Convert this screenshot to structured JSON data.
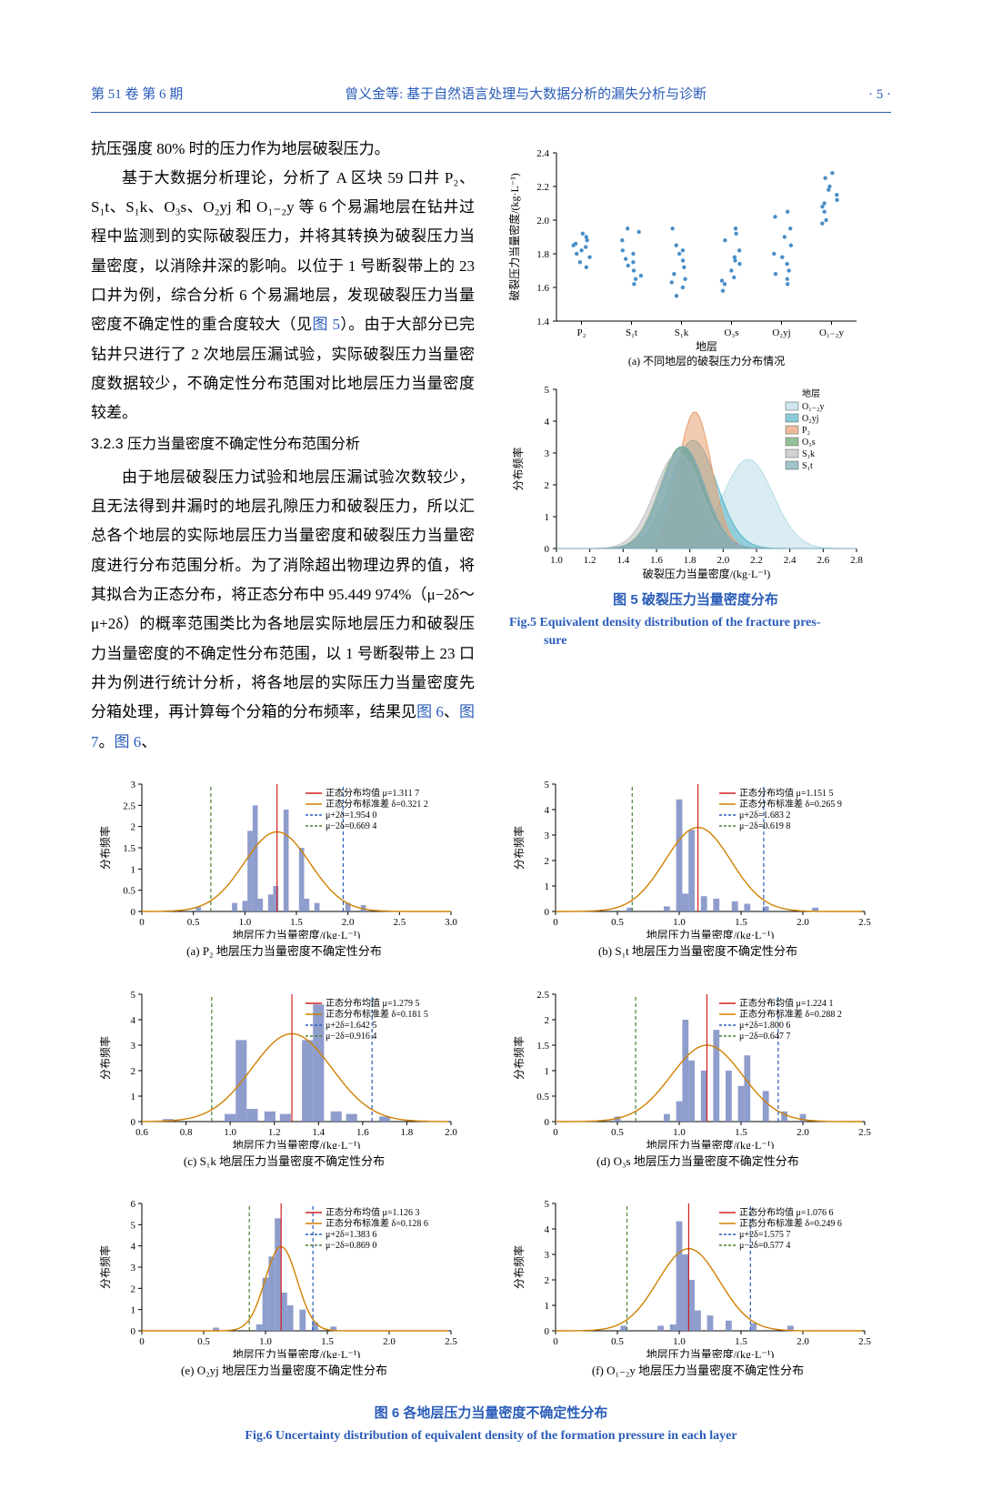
{
  "header": {
    "left": "第 51 卷 第 6 期",
    "center": "曾义金等: 基于自然语言处理与大数据分析的漏失分析与诊断",
    "right": "· 5 ·"
  },
  "body": {
    "p1": "抗压强度 80% 时的压力作为地层破裂压力。",
    "p2_a": "基于大数据分析理论，分析了 A 区块 59 口井 P₂、S₁t、S₁k、O₃s、O₂yj 和 O₁₋₂y 等 6 个易漏地层在钻井过程中监测到的实际破裂压力，并将其转换为破裂压力当量密度，以消除井深的影响。以位于 1 号断裂带上的 23 口井为例，综合分析 6 个易漏地层，发现破裂压力当量密度不确定性的重合度较大（见",
    "p2_link": "图 5",
    "p2_b": "）。由于大部分已完钻井只进行了 2 次地层压漏试验，实际破裂压力当量密度数据较少，不确定性分布范围对比地层压力当量密度较差。",
    "sec_heading": "3.2.3  压力当量密度不确定性分布范围分析",
    "p3_a": "由于地层破裂压力试验和地层压漏试验次数较少，且无法得到井漏时的地层孔隙压力和破裂压力，所以汇总各个地层的实际地层压力当量密度和破裂压力当量密度进行分布范围分析。为了消除超出物理边界的值，将其拟合为正态分布，将正态分布中 95.449 974%（μ−2δ～μ+2δ）的概率范围类比为各地层实际地层压力和破裂压力当量密度的不确定性分布范围，以 1 号断裂带上 23 口井为例进行统计分析，将各地层的实际压力当量密度先分箱处理，再计算每个分箱的分布频率，结果见",
    "p3_link1": "图 6",
    "p3_mid": "、",
    "p3_link2": "图 7",
    "p3_b": "。",
    "p3_link3": "图 6",
    "p3_end": "、"
  },
  "fig5": {
    "caption_zh": "图 5  破裂压力当量密度分布",
    "caption_en_1": "Fig.5  Equivalent density distribution of the fracture pres-",
    "caption_en_2": "sure",
    "a": {
      "ylabel": "破裂压力当量密度/(kg·L⁻¹)",
      "xlabel": "地层",
      "sub_caption": "(a) 不同地层的破裂压力分布情况",
      "ylim": [
        1.4,
        2.4
      ],
      "ytick_step": 0.2,
      "categories": [
        "P₂",
        "S₁t",
        "S₁k",
        "O₃s",
        "O₂yj",
        "O₁₋₂y"
      ],
      "marker_color": "#4a8ec7",
      "points": {
        "P₂": [
          1.78,
          1.8,
          1.82,
          1.84,
          1.85,
          1.86,
          1.88,
          1.75,
          1.72,
          1.9,
          1.92
        ],
        "S₁t": [
          1.62,
          1.65,
          1.7,
          1.75,
          1.8,
          1.88,
          1.95,
          1.67,
          1.73,
          1.77,
          1.82,
          1.93
        ],
        "S₁k": [
          1.6,
          1.65,
          1.68,
          1.72,
          1.76,
          1.8,
          1.82,
          1.85,
          1.95,
          1.63,
          1.55
        ],
        "O₃s": [
          1.58,
          1.62,
          1.66,
          1.7,
          1.74,
          1.78,
          1.82,
          1.88,
          1.92,
          1.64,
          1.76,
          1.95
        ],
        "O₂yj": [
          1.62,
          1.65,
          1.7,
          1.74,
          1.8,
          1.85,
          1.9,
          1.95,
          2.02,
          2.05,
          1.68,
          1.78
        ],
        "O₁₋₂y": [
          2.0,
          2.05,
          2.1,
          2.15,
          2.2,
          2.25,
          1.98,
          2.08,
          2.12,
          2.28,
          2.18
        ]
      }
    },
    "b": {
      "ylabel": "分布频率",
      "xlabel": "破裂压力当量密度/(kg·L⁻¹)",
      "sub_caption": "(b) 不同破裂压力的分布频率",
      "xlim": [
        1.0,
        2.8
      ],
      "xtick_step": 0.2,
      "ylim": [
        0,
        5
      ],
      "ytick_step": 1,
      "legend_title": "地层",
      "series": [
        {
          "name": "O₁₋₂y",
          "color": "#b8dce8",
          "peak_x": 2.15,
          "sigma": 0.15,
          "peak_y": 2.8
        },
        {
          "name": "O₂yj",
          "color": "#5ab5c7",
          "peak_x": 1.82,
          "sigma": 0.14,
          "peak_y": 3.4
        },
        {
          "name": "P₂",
          "color": "#e8a070",
          "peak_x": 1.83,
          "sigma": 0.1,
          "peak_y": 4.3
        },
        {
          "name": "O₃s",
          "color": "#6aa870",
          "peak_x": 1.75,
          "sigma": 0.13,
          "peak_y": 3.2
        },
        {
          "name": "S₁k",
          "color": "#c0c0c0",
          "peak_x": 1.73,
          "sigma": 0.14,
          "peak_y": 3.0
        },
        {
          "name": "S₁t",
          "color": "#78a8b8",
          "peak_x": 1.76,
          "sigma": 0.13,
          "peak_y": 3.2
        }
      ]
    }
  },
  "fig6": {
    "caption_zh": "图 6  各地层压力当量密度不确定性分布",
    "caption_en": "Fig.6  Uncertainty distribution of equivalent density of the formation pressure in each layer",
    "common": {
      "xlabel": "地层压力当量密度/(kg·L⁻¹)",
      "ylabel": "分布频率",
      "bar_color": "#7b8cc4",
      "mean_line_color": "#d02020",
      "std_line_color": "#d08000",
      "p2d_line_color": "#2a5cb8",
      "m2d_line_color": "#4a8030",
      "legend_labels": [
        "正态分布均值 μ=",
        "正态分布标准差 δ=",
        "μ+2δ=",
        "μ−2δ="
      ]
    },
    "plots": [
      {
        "id": "a",
        "caption": "(a) P₂ 地层压力当量密度不确定性分布",
        "mu": 1.3117,
        "delta": 0.3212,
        "p2d": 1.954,
        "m2d": 0.6694,
        "mu_s": "1.311 7",
        "delta_s": "0.321 2",
        "p2d_s": "1.954 0",
        "m2d_s": "0.669 4",
        "xlim": [
          0,
          3.0
        ],
        "xticks": [
          0,
          0.5,
          1.0,
          1.5,
          2.0,
          2.5,
          3.0
        ],
        "ylim": [
          0,
          3.0
        ],
        "yticks": [
          0,
          0.5,
          1.0,
          1.5,
          2.0,
          2.5,
          3.0
        ],
        "bars": [
          [
            0.55,
            0.1
          ],
          [
            0.9,
            0.2
          ],
          [
            1.0,
            0.25
          ],
          [
            1.05,
            1.9
          ],
          [
            1.1,
            2.5
          ],
          [
            1.15,
            0.3
          ],
          [
            1.25,
            0.4
          ],
          [
            1.3,
            0.6
          ],
          [
            1.4,
            2.4
          ],
          [
            1.55,
            1.5
          ],
          [
            1.6,
            0.3
          ],
          [
            1.7,
            0.2
          ],
          [
            2.0,
            0.2
          ],
          [
            2.15,
            0.15
          ]
        ]
      },
      {
        "id": "b",
        "caption": "(b) S₁t 地层压力当量密度不确定性分布",
        "mu": 1.1515,
        "delta": 0.2659,
        "p2d": 1.6832,
        "m2d": 0.6198,
        "mu_s": "1.151 5",
        "delta_s": "0.265 9",
        "p2d_s": "1.683 2",
        "m2d_s": "0.619 8",
        "xlim": [
          0,
          2.5
        ],
        "xticks": [
          0,
          0.5,
          1.0,
          1.5,
          2.0,
          2.5
        ],
        "ylim": [
          0,
          5
        ],
        "yticks": [
          0,
          1,
          2,
          3,
          4,
          5
        ],
        "bars": [
          [
            0.6,
            0.15
          ],
          [
            0.9,
            0.2
          ],
          [
            1.0,
            4.4
          ],
          [
            1.05,
            0.7
          ],
          [
            1.1,
            3.2
          ],
          [
            1.2,
            0.6
          ],
          [
            1.3,
            0.5
          ],
          [
            1.45,
            0.4
          ],
          [
            1.55,
            0.3
          ],
          [
            1.7,
            0.2
          ],
          [
            2.1,
            0.15
          ]
        ]
      },
      {
        "id": "c",
        "caption": "(c) S₁k 地层压力当量密度不确定性分布",
        "mu": 1.2795,
        "delta": 0.1815,
        "p2d": 1.6425,
        "m2d": 0.9164,
        "mu_s": "1.279 5",
        "delta_s": "0.181 5",
        "p2d_s": "1.642 5",
        "m2d_s": "0.916 4",
        "xlim": [
          0.6,
          2.0
        ],
        "xticks": [
          0.6,
          0.8,
          1.0,
          1.2,
          1.4,
          1.6,
          1.8,
          2.0
        ],
        "ylim": [
          0,
          5
        ],
        "yticks": [
          0,
          1,
          2,
          3,
          4,
          5
        ],
        "bars": [
          [
            0.72,
            0.1
          ],
          [
            1.0,
            0.3
          ],
          [
            1.05,
            3.2
          ],
          [
            1.1,
            0.5
          ],
          [
            1.18,
            0.4
          ],
          [
            1.25,
            0.3
          ],
          [
            1.35,
            3.2
          ],
          [
            1.4,
            4.6
          ],
          [
            1.48,
            0.4
          ],
          [
            1.55,
            0.3
          ],
          [
            1.7,
            0.2
          ]
        ]
      },
      {
        "id": "d",
        "caption": "(d) O₃s 地层压力当量密度不确定性分布",
        "mu": 1.2241,
        "delta": 0.2882,
        "p2d": 1.8006,
        "m2d": 0.6477,
        "mu_s": "1.224 1",
        "delta_s": "0.288 2",
        "p2d_s": "1.800 6",
        "m2d_s": "0.647 7",
        "xlim": [
          0,
          2.5
        ],
        "xticks": [
          0,
          0.5,
          1.0,
          1.5,
          2.0,
          2.5
        ],
        "ylim": [
          0,
          2.5
        ],
        "yticks": [
          0,
          0.5,
          1.0,
          1.5,
          2.0,
          2.5
        ],
        "bars": [
          [
            0.5,
            0.1
          ],
          [
            0.9,
            0.15
          ],
          [
            1.0,
            0.4
          ],
          [
            1.05,
            2.0
          ],
          [
            1.1,
            1.2
          ],
          [
            1.2,
            1.0
          ],
          [
            1.3,
            1.8
          ],
          [
            1.4,
            1.0
          ],
          [
            1.5,
            0.7
          ],
          [
            1.55,
            1.3
          ],
          [
            1.7,
            0.6
          ],
          [
            1.85,
            0.2
          ],
          [
            2.0,
            0.15
          ]
        ]
      },
      {
        "id": "e",
        "caption": "(e) O₂yj 地层压力当量密度不确定性分布",
        "mu": 1.1263,
        "delta": 0.1286,
        "p2d": 1.3836,
        "m2d": 0.869,
        "mu_s": "1.126 3",
        "delta_s": "0.128 6",
        "p2d_s": "1.383 6",
        "m2d_s": "0.869 0",
        "xlim": [
          0,
          2.5
        ],
        "xticks": [
          0,
          0.5,
          1.0,
          1.5,
          2.0,
          2.5
        ],
        "ylim": [
          0,
          6
        ],
        "yticks": [
          0,
          1,
          2,
          3,
          4,
          5,
          6
        ],
        "bars": [
          [
            0.6,
            0.15
          ],
          [
            0.95,
            0.3
          ],
          [
            1.0,
            2.5
          ],
          [
            1.05,
            3.5
          ],
          [
            1.1,
            5.3
          ],
          [
            1.15,
            1.8
          ],
          [
            1.2,
            1.2
          ],
          [
            1.3,
            1.0
          ],
          [
            1.4,
            0.4
          ],
          [
            1.55,
            0.2
          ]
        ]
      },
      {
        "id": "f",
        "caption": "(f) O₁₋₂y 地层压力当量密度不确定性分布",
        "mu": 1.0766,
        "delta": 0.2496,
        "p2d": 1.5757,
        "m2d": 0.5774,
        "mu_s": "1.076 6",
        "delta_s": "0.249 6",
        "p2d_s": "1.575 7",
        "m2d_s": "0.577 4",
        "xlim": [
          0,
          2.5
        ],
        "xticks": [
          0,
          0.5,
          1.0,
          1.5,
          2.0,
          2.5
        ],
        "ylim": [
          0,
          5
        ],
        "yticks": [
          0,
          1,
          2,
          3,
          4,
          5
        ],
        "bars": [
          [
            0.55,
            0.2
          ],
          [
            0.85,
            0.2
          ],
          [
            0.95,
            0.25
          ],
          [
            1.0,
            4.3
          ],
          [
            1.05,
            3.0
          ],
          [
            1.1,
            2.0
          ],
          [
            1.15,
            0.8
          ],
          [
            1.25,
            0.6
          ],
          [
            1.4,
            0.4
          ],
          [
            1.6,
            0.3
          ],
          [
            1.9,
            0.2
          ]
        ]
      }
    ]
  }
}
